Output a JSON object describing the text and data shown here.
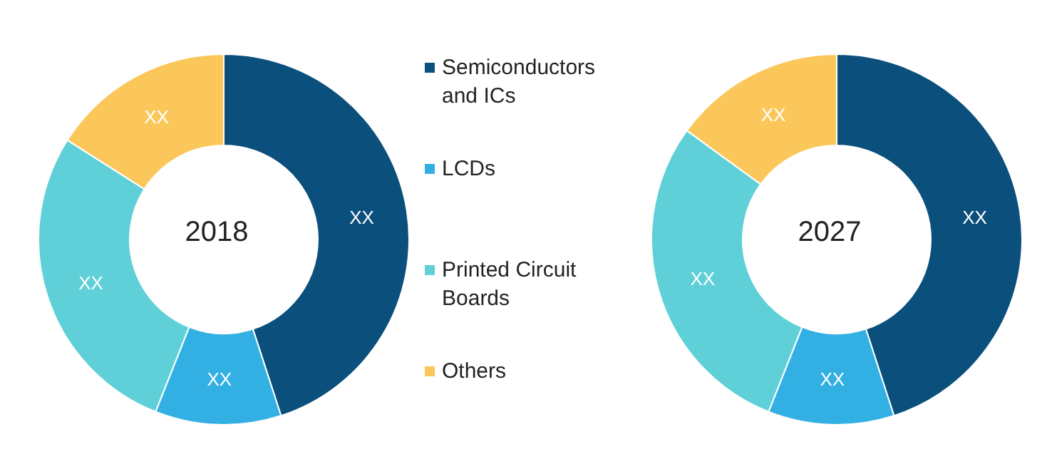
{
  "chart_data": [
    {
      "type": "donut",
      "title": "2018",
      "categories": [
        "Semiconductors and ICs",
        "LCDs",
        "Printed Circuit Boards",
        "Others"
      ],
      "values": [
        45,
        11,
        28,
        16
      ],
      "colors": [
        "#0b4f7c",
        "#33b0e3",
        "#5fd0d8",
        "#fbc75b"
      ],
      "value_labels": [
        "XX",
        "XX",
        "XX",
        "XX"
      ],
      "legend": "right"
    },
    {
      "type": "donut",
      "title": "2027",
      "values": [
        45,
        11,
        29,
        15
      ],
      "colors": [
        "#0b4f7c",
        "#33b0e3",
        "#5fd0d8",
        "#fbc75b"
      ],
      "value_labels": [
        "XX",
        "XX",
        "XX",
        "XX"
      ]
    }
  ]
}
